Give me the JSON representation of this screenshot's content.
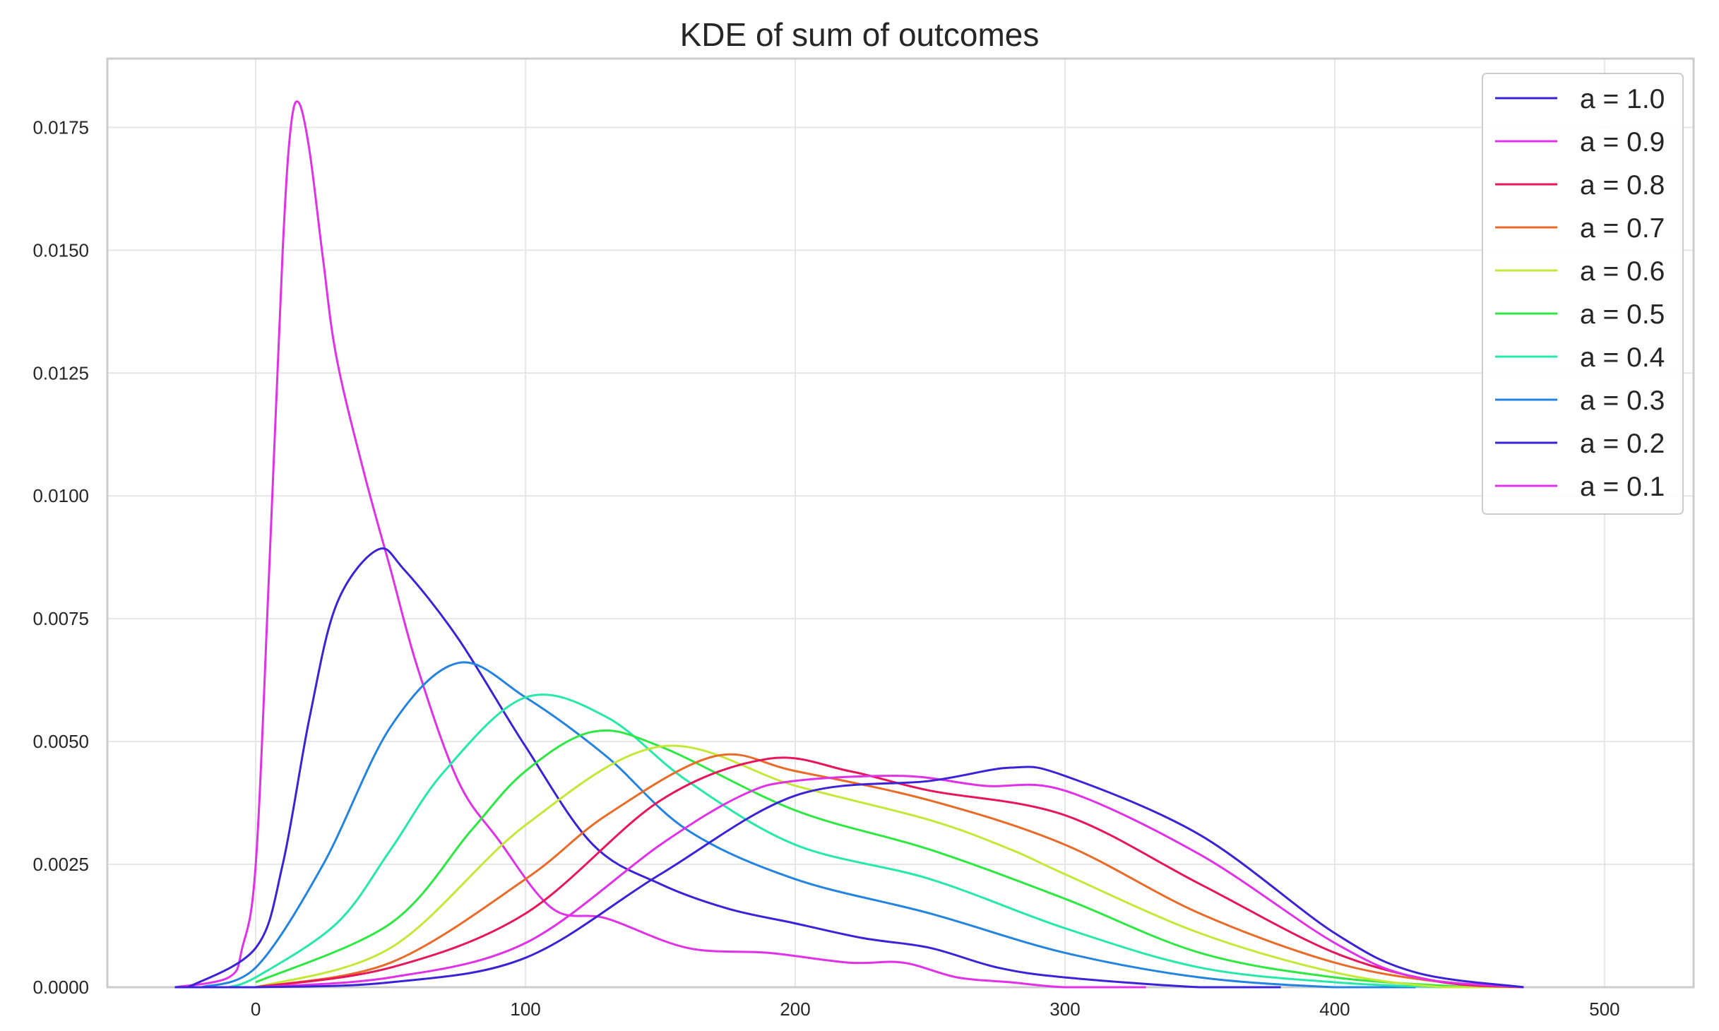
{
  "chart_data": {
    "type": "line",
    "title": "KDE of sum of outcomes",
    "xlabel": "",
    "ylabel": "",
    "xlim": [
      -55,
      533
    ],
    "ylim": [
      0,
      0.0189
    ],
    "grid": true,
    "legend_placement": "top-right",
    "x_ticks": [
      0,
      100,
      200,
      300,
      400,
      500
    ],
    "x_tick_labels": [
      "0",
      "100",
      "200",
      "300",
      "400",
      "500"
    ],
    "y_ticks": [
      0,
      0.0025,
      0.005,
      0.0075,
      0.01,
      0.0125,
      0.015,
      0.0175
    ],
    "y_tick_labels": [
      "0.0000",
      "0.0025",
      "0.0050",
      "0.0075",
      "0.0100",
      "0.0125",
      "0.0150",
      "0.0175"
    ],
    "series": [
      {
        "name": "a = 1.0",
        "color": "#3a22d8",
        "x": [
          -30,
          0,
          50,
          100,
          150,
          200,
          250,
          280,
          300,
          350,
          400,
          430,
          470
        ],
        "y": [
          0,
          0,
          0.0001,
          0.0006,
          0.0023,
          0.0039,
          0.0042,
          0.00447,
          0.0043,
          0.0031,
          0.0011,
          0.0003,
          0
        ]
      },
      {
        "name": "a = 0.9",
        "color": "#e030e8",
        "x": [
          0,
          50,
          100,
          150,
          180,
          200,
          240,
          270,
          300,
          350,
          400,
          430,
          470
        ],
        "y": [
          0,
          0.0002,
          0.0009,
          0.0029,
          0.0039,
          0.0042,
          0.0043,
          0.0041,
          0.004,
          0.0027,
          0.0009,
          0.0002,
          0
        ]
      },
      {
        "name": "a = 0.8",
        "color": "#e8155a",
        "x": [
          0,
          50,
          100,
          150,
          190,
          220,
          250,
          300,
          350,
          400,
          440,
          470
        ],
        "y": [
          0,
          0.0004,
          0.0015,
          0.0038,
          0.00465,
          0.0044,
          0.004,
          0.0035,
          0.0021,
          0.0007,
          0.0001,
          0
        ]
      },
      {
        "name": "a = 0.7",
        "color": "#ea6a28",
        "x": [
          0,
          50,
          100,
          130,
          170,
          200,
          250,
          300,
          350,
          400,
          440,
          470
        ],
        "y": [
          0,
          0.0005,
          0.0022,
          0.0035,
          0.0047,
          0.0044,
          0.0038,
          0.0029,
          0.0015,
          0.0005,
          0.0001,
          0
        ]
      },
      {
        "name": "a = 0.6",
        "color": "#c4e838",
        "x": [
          0,
          50,
          100,
          150,
          200,
          250,
          280,
          300,
          350,
          400,
          440,
          470
        ],
        "y": [
          0,
          0.0008,
          0.0033,
          0.0049,
          0.0041,
          0.0034,
          0.0028,
          0.0023,
          0.0011,
          0.0003,
          0,
          0
        ]
      },
      {
        "name": "a = 0.5",
        "color": "#2ee842",
        "x": [
          0,
          50,
          80,
          100,
          125,
          150,
          200,
          250,
          300,
          350,
          400,
          450
        ],
        "y": [
          0.0001,
          0.0013,
          0.0032,
          0.0044,
          0.0052,
          0.0049,
          0.0036,
          0.0028,
          0.0018,
          0.0007,
          0.0002,
          0
        ]
      },
      {
        "name": "a = 0.4",
        "color": "#26e8a8",
        "x": [
          -10,
          0,
          30,
          50,
          70,
          100,
          130,
          160,
          200,
          250,
          300,
          350,
          400,
          440
        ],
        "y": [
          0,
          0.0002,
          0.0013,
          0.0028,
          0.0044,
          0.0059,
          0.0055,
          0.0042,
          0.0029,
          0.0022,
          0.0012,
          0.0004,
          0.0001,
          0
        ]
      },
      {
        "name": "a = 0.3",
        "color": "#2284e0",
        "x": [
          -20,
          0,
          25,
          50,
          75,
          100,
          130,
          160,
          200,
          250,
          300,
          350,
          400,
          430
        ],
        "y": [
          0,
          0.0004,
          0.0025,
          0.0053,
          0.0066,
          0.0059,
          0.0047,
          0.0032,
          0.0022,
          0.0015,
          0.0007,
          0.0002,
          0,
          0
        ]
      },
      {
        "name": "a = 0.2",
        "color": "#3a22d8",
        "x": [
          -25,
          0,
          10,
          20,
          30,
          45,
          55,
          75,
          100,
          125,
          150,
          175,
          200,
          225,
          250,
          275,
          300,
          350,
          380
        ],
        "y": [
          0,
          0.0008,
          0.0025,
          0.0055,
          0.0078,
          0.0089,
          0.0085,
          0.0071,
          0.0049,
          0.0029,
          0.0021,
          0.0016,
          0.0013,
          0.001,
          0.0008,
          0.0004,
          0.0002,
          0,
          0
        ]
      },
      {
        "name": "a = 0.1",
        "color": "#e030e8",
        "x": [
          -30,
          -10,
          -5,
          0,
          5,
          10,
          13,
          16,
          20,
          25,
          30,
          40,
          50,
          60,
          75,
          90,
          110,
          130,
          160,
          190,
          220,
          240,
          260,
          280,
          300,
          330
        ],
        "y": [
          0,
          0.0002,
          0.0008,
          0.0025,
          0.0085,
          0.015,
          0.0175,
          0.018,
          0.017,
          0.0148,
          0.0128,
          0.0105,
          0.0085,
          0.0065,
          0.0042,
          0.003,
          0.0016,
          0.0014,
          0.0008,
          0.0007,
          0.0005,
          0.0005,
          0.0002,
          0.0001,
          0,
          0
        ]
      }
    ]
  }
}
